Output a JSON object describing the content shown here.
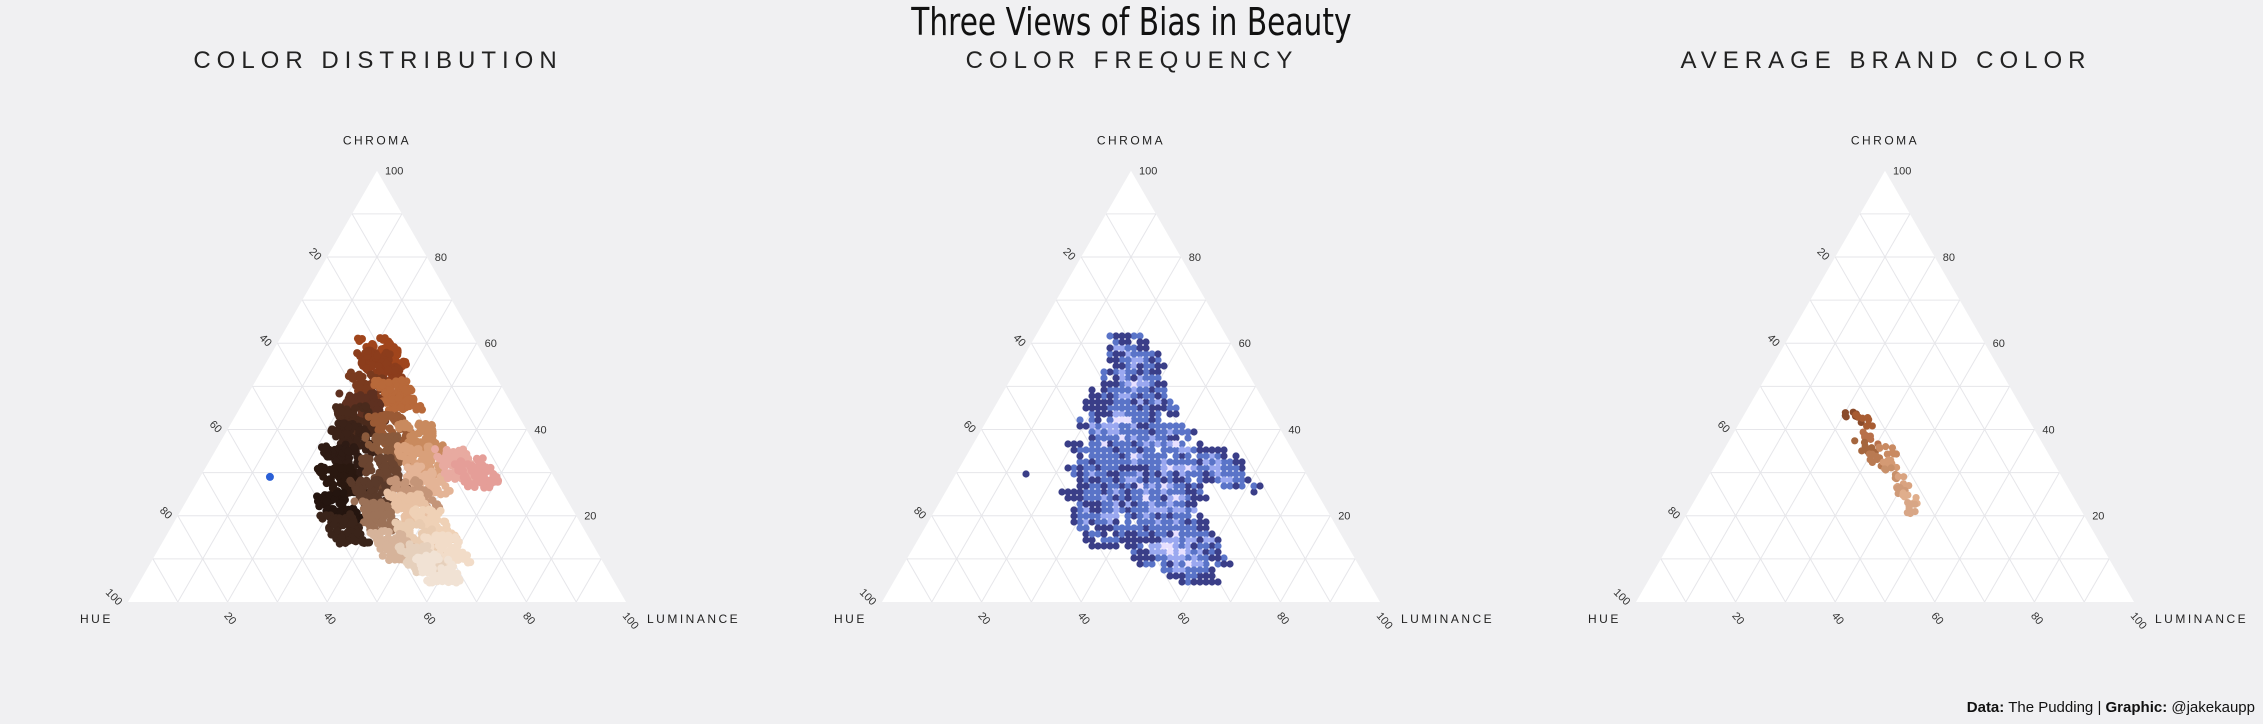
{
  "title": "Three Views of Bias in Beauty",
  "credit": {
    "data_label": "Data:",
    "data_value": "The Pudding",
    "separator": "|",
    "graphic_label": "Graphic:",
    "graphic_value": "@jakekaupp"
  },
  "axes": {
    "top": "CHROMA",
    "left": "HUE",
    "right": "LUMINANCE",
    "ticks": [
      "20",
      "40",
      "60",
      "80",
      "100"
    ]
  },
  "chart_data": [
    {
      "type": "scatter",
      "subtype": "ternary",
      "title": "COLOR DISTRIBUTION",
      "axes": [
        "CHROMA",
        "HUE",
        "LUMINANCE"
      ],
      "ticks": [
        20,
        40,
        60,
        80,
        100
      ],
      "encoding": "points colored by actual shade color",
      "points": [
        {
          "chroma": 29,
          "hue": 57,
          "luminance": 14,
          "color": "#2a5fd6"
        },
        {
          "chroma": 58,
          "hue": 20,
          "luminance": 22,
          "color": "#a0451c"
        },
        {
          "chroma": 55,
          "hue": 22,
          "luminance": 23,
          "color": "#8c3d1c"
        },
        {
          "chroma": 50,
          "hue": 26,
          "luminance": 24,
          "color": "#7a3a1e"
        },
        {
          "chroma": 48,
          "hue": 22,
          "luminance": 30,
          "color": "#b8693a"
        },
        {
          "chroma": 45,
          "hue": 30,
          "luminance": 25,
          "color": "#5e3020"
        },
        {
          "chroma": 42,
          "hue": 33,
          "luminance": 25,
          "color": "#4a2a1c"
        },
        {
          "chroma": 40,
          "hue": 27,
          "luminance": 33,
          "color": "#9a5a35"
        },
        {
          "chroma": 38,
          "hue": 36,
          "luminance": 26,
          "color": "#3b2218"
        },
        {
          "chroma": 38,
          "hue": 22,
          "luminance": 40,
          "color": "#c98a5e"
        },
        {
          "chroma": 35,
          "hue": 30,
          "luminance": 35,
          "color": "#8a5a3c"
        },
        {
          "chroma": 33,
          "hue": 40,
          "luminance": 27,
          "color": "#2e1b14"
        },
        {
          "chroma": 33,
          "hue": 25,
          "luminance": 42,
          "color": "#d9a07a"
        },
        {
          "chroma": 30,
          "hue": 34,
          "luminance": 36,
          "color": "#6a4430"
        },
        {
          "chroma": 28,
          "hue": 43,
          "luminance": 29,
          "color": "#2a1810"
        },
        {
          "chroma": 28,
          "hue": 26,
          "luminance": 46,
          "color": "#e4b496"
        },
        {
          "chroma": 25,
          "hue": 38,
          "luminance": 37,
          "color": "#5a3a2a"
        },
        {
          "chroma": 25,
          "hue": 30,
          "luminance": 45,
          "color": "#c49578"
        },
        {
          "chroma": 22,
          "hue": 47,
          "luminance": 31,
          "color": "#24150f"
        },
        {
          "chroma": 22,
          "hue": 32,
          "luminance": 46,
          "color": "#e8c1a3"
        },
        {
          "chroma": 20,
          "hue": 40,
          "luminance": 40,
          "color": "#9c7258"
        },
        {
          "chroma": 18,
          "hue": 30,
          "luminance": 52,
          "color": "#efd1b6"
        },
        {
          "chroma": 17,
          "hue": 48,
          "luminance": 35,
          "color": "#3a241a"
        },
        {
          "chroma": 15,
          "hue": 34,
          "luminance": 51,
          "color": "#e9cbb0"
        },
        {
          "chroma": 13,
          "hue": 40,
          "luminance": 47,
          "color": "#d6b39a"
        },
        {
          "chroma": 12,
          "hue": 30,
          "luminance": 58,
          "color": "#f2dcc8"
        },
        {
          "chroma": 10,
          "hue": 36,
          "luminance": 54,
          "color": "#e6d0bc"
        },
        {
          "chroma": 8,
          "hue": 34,
          "luminance": 58,
          "color": "#f1e2d4"
        },
        {
          "chroma": 32,
          "hue": 18,
          "luminance": 50,
          "color": "#e8aaa0"
        },
        {
          "chroma": 30,
          "hue": 15,
          "luminance": 55,
          "color": "#e59e98"
        }
      ]
    },
    {
      "type": "heatmap",
      "subtype": "ternary hexbin",
      "title": "COLOR FREQUENCY",
      "axes": [
        "CHROMA",
        "HUE",
        "LUMINANCE"
      ],
      "ticks": [
        20,
        40,
        60,
        80,
        100
      ],
      "encoding": "hex bins colored by count, dark navy (low) to white-lavender (high)",
      "colors": [
        "#231a45",
        "#3a3e88",
        "#5a74c8",
        "#9aa8f0",
        "#e8e0ff"
      ]
    },
    {
      "type": "scatter",
      "subtype": "ternary",
      "title": "AVERAGE BRAND COLOR",
      "axes": [
        "CHROMA",
        "HUE",
        "LUMINANCE"
      ],
      "ticks": [
        20,
        40,
        60,
        80,
        100
      ],
      "encoding": "one point per brand, colored by average shade",
      "points": [
        {
          "chroma": 43,
          "hue": 35,
          "luminance": 22,
          "color": "#8a4a2a"
        },
        {
          "chroma": 42,
          "hue": 33,
          "luminance": 25,
          "color": "#a85c32"
        },
        {
          "chroma": 38,
          "hue": 34,
          "luminance": 28,
          "color": "#b8704a"
        },
        {
          "chroma": 36,
          "hue": 36,
          "luminance": 28,
          "color": "#a5663e"
        },
        {
          "chroma": 35,
          "hue": 32,
          "luminance": 33,
          "color": "#c98a62"
        },
        {
          "chroma": 33,
          "hue": 35,
          "luminance": 32,
          "color": "#b97a52"
        },
        {
          "chroma": 32,
          "hue": 33,
          "luminance": 35,
          "color": "#d49a74"
        },
        {
          "chroma": 30,
          "hue": 34,
          "luminance": 36,
          "color": "#c8906a"
        },
        {
          "chroma": 28,
          "hue": 33,
          "luminance": 39,
          "color": "#d9a380"
        },
        {
          "chroma": 26,
          "hue": 34,
          "luminance": 40,
          "color": "#cf9a78"
        },
        {
          "chroma": 24,
          "hue": 33,
          "luminance": 43,
          "color": "#e0ae8c"
        },
        {
          "chroma": 22,
          "hue": 34,
          "luminance": 44,
          "color": "#d8a686"
        }
      ]
    }
  ]
}
